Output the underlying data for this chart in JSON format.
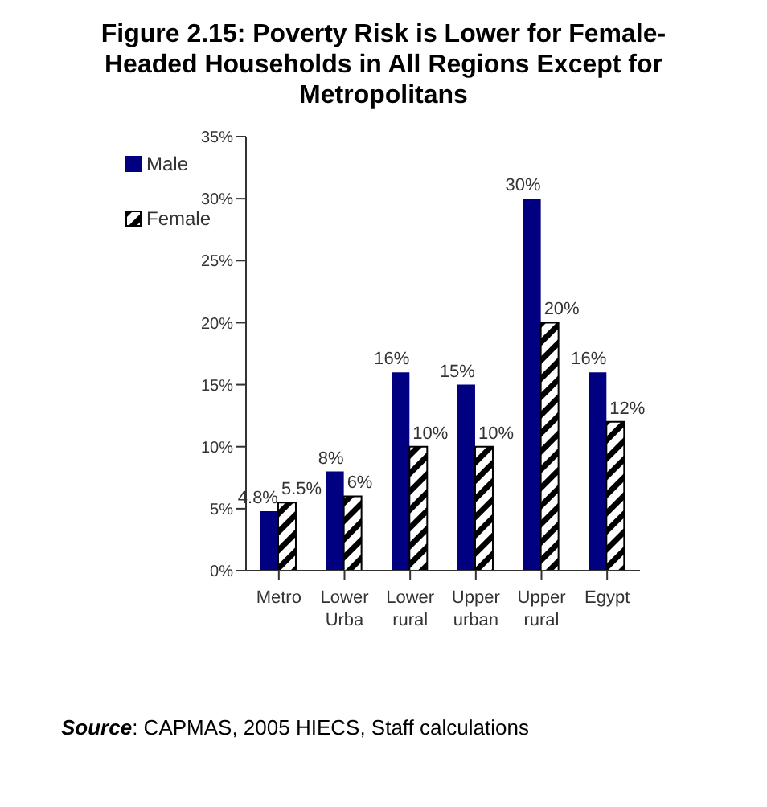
{
  "chart_data": {
    "type": "bar",
    "title": "Figure 2.15: Poverty Risk is Lower for Female-Headed Households in All Regions Except for Metropolitans",
    "categories": [
      "Metro",
      "Lower Urba",
      "Lower rural",
      "Upper urban",
      "Upper rural",
      "Egypt"
    ],
    "series": [
      {
        "name": "Male",
        "color": "#000080",
        "values": [
          4.8,
          8,
          16,
          15,
          30,
          16
        ],
        "value_labels": [
          "4.8%",
          "8%",
          "16%",
          "15%",
          "30%",
          "16%"
        ]
      },
      {
        "name": "Female",
        "color": "#000000",
        "values": [
          5.5,
          6,
          10,
          10,
          20,
          12
        ],
        "value_labels": [
          "5.5%",
          "6%",
          "10%",
          "10%",
          "20%",
          "12%"
        ]
      }
    ],
    "ylim": [
      0,
      35
    ],
    "yticks": [
      {
        "value": 0,
        "label": "0%"
      },
      {
        "value": 5,
        "label": "5%"
      },
      {
        "value": 10,
        "label": "10%"
      },
      {
        "value": 15,
        "label": "15%"
      },
      {
        "value": 20,
        "label": "20%"
      },
      {
        "value": 25,
        "label": "25%"
      },
      {
        "value": 30,
        "label": "30%"
      },
      {
        "value": 35,
        "label": "35%"
      }
    ],
    "grid": false,
    "legend": "top left",
    "annotations": [
      "Source: CAPMAS, 2005 HIECS, Staff calculations"
    ]
  }
}
